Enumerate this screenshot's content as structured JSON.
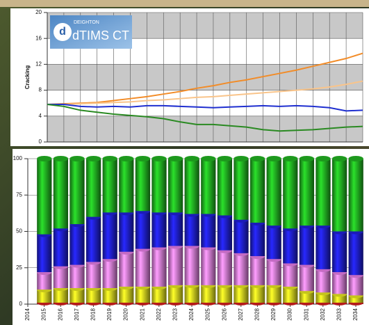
{
  "logo": {
    "company": "DEIGHTON",
    "product": "dTIMS CT"
  },
  "chart_data": [
    {
      "type": "line",
      "ylabel": "Cracking",
      "x": [
        2015,
        2016,
        2017,
        2018,
        2019,
        2020,
        2021,
        2022,
        2023,
        2024,
        2025,
        2026,
        2027,
        2028,
        2029,
        2030,
        2031,
        2032,
        2033,
        2034
      ],
      "xlim": [
        2015,
        2034
      ],
      "xticks": [
        2015,
        2016,
        2017,
        2018,
        2019,
        2020,
        2021,
        2022,
        2023,
        2024,
        2025,
        2026,
        2027,
        2028,
        2029,
        2030,
        2031,
        2032,
        2033,
        2034
      ],
      "ylim": [
        0,
        20
      ],
      "yticks": [
        0,
        4,
        8,
        12,
        16,
        20
      ],
      "grid": true,
      "banded": true,
      "series": [
        {
          "color": "#f28c28",
          "values": [
            5.8,
            5.9,
            6.0,
            6.1,
            6.4,
            6.7,
            7.0,
            7.4,
            7.8,
            8.3,
            8.7,
            9.2,
            9.6,
            10.1,
            10.6,
            11.1,
            11.7,
            12.3,
            12.9,
            13.7
          ]
        },
        {
          "color": "#f9c48a",
          "values": [
            5.8,
            5.8,
            5.9,
            6.0,
            6.1,
            6.2,
            6.4,
            6.5,
            6.7,
            6.9,
            7.0,
            7.2,
            7.4,
            7.6,
            7.8,
            8.0,
            8.2,
            8.5,
            8.9,
            9.4
          ]
        },
        {
          "color": "#1f2fd0",
          "values": [
            5.8,
            5.8,
            5.5,
            5.4,
            5.5,
            5.4,
            5.6,
            5.6,
            5.5,
            5.4,
            5.3,
            5.4,
            5.5,
            5.6,
            5.5,
            5.6,
            5.5,
            5.3,
            4.8,
            4.9
          ]
        },
        {
          "color": "#2a8a22",
          "values": [
            5.8,
            5.5,
            4.9,
            4.6,
            4.3,
            4.1,
            3.9,
            3.6,
            3.1,
            2.7,
            2.7,
            2.5,
            2.3,
            1.9,
            1.7,
            1.8,
            1.9,
            2.1,
            2.3,
            2.4
          ]
        }
      ]
    },
    {
      "type": "bar",
      "stacked": true,
      "xlim": [
        2014,
        2034
      ],
      "xticks": [
        2014,
        2015,
        2016,
        2017,
        2018,
        2019,
        2020,
        2021,
        2022,
        2023,
        2024,
        2025,
        2026,
        2027,
        2028,
        2029,
        2030,
        2031,
        2032,
        2033,
        2034
      ],
      "ylim": [
        0,
        100
      ],
      "yticks": [
        0,
        25,
        50,
        75,
        100
      ],
      "grid": true,
      "series": [
        {
          "color": "#d42020",
          "values": [
            1,
            1,
            1,
            1,
            1,
            1,
            1,
            1,
            1,
            1,
            1,
            1,
            1,
            1,
            1,
            1,
            1,
            1,
            1,
            1
          ]
        },
        {
          "color": "#e8e820",
          "values": [
            9,
            10,
            10,
            10,
            10,
            11,
            11,
            11,
            12,
            12,
            12,
            12,
            12,
            12,
            12,
            11,
            8,
            7,
            6,
            5
          ]
        },
        {
          "color": "#e67ee6",
          "values": [
            12,
            15,
            16,
            18,
            20,
            24,
            26,
            27,
            27,
            27,
            26,
            24,
            22,
            20,
            18,
            16,
            18,
            16,
            15,
            14
          ]
        },
        {
          "color": "#2020d8",
          "values": [
            26,
            26,
            28,
            31,
            32,
            27,
            26,
            24,
            23,
            22,
            23,
            24,
            23,
            23,
            23,
            24,
            27,
            30,
            28,
            30
          ]
        },
        {
          "color": "#22b422",
          "values": [
            52,
            48,
            45,
            40,
            37,
            37,
            36,
            37,
            37,
            38,
            38,
            39,
            42,
            44,
            46,
            48,
            46,
            46,
            50,
            50
          ]
        }
      ]
    }
  ]
}
